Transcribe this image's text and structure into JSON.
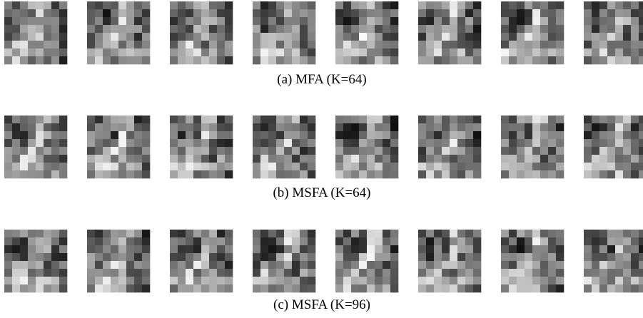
{
  "figure": {
    "subfigures": [
      {
        "caption": "(a) MFA (K=64)"
      },
      {
        "caption": "(b) MSFA (K=64)"
      },
      {
        "caption": "(c) MSFA (K=96)"
      }
    ]
  }
}
